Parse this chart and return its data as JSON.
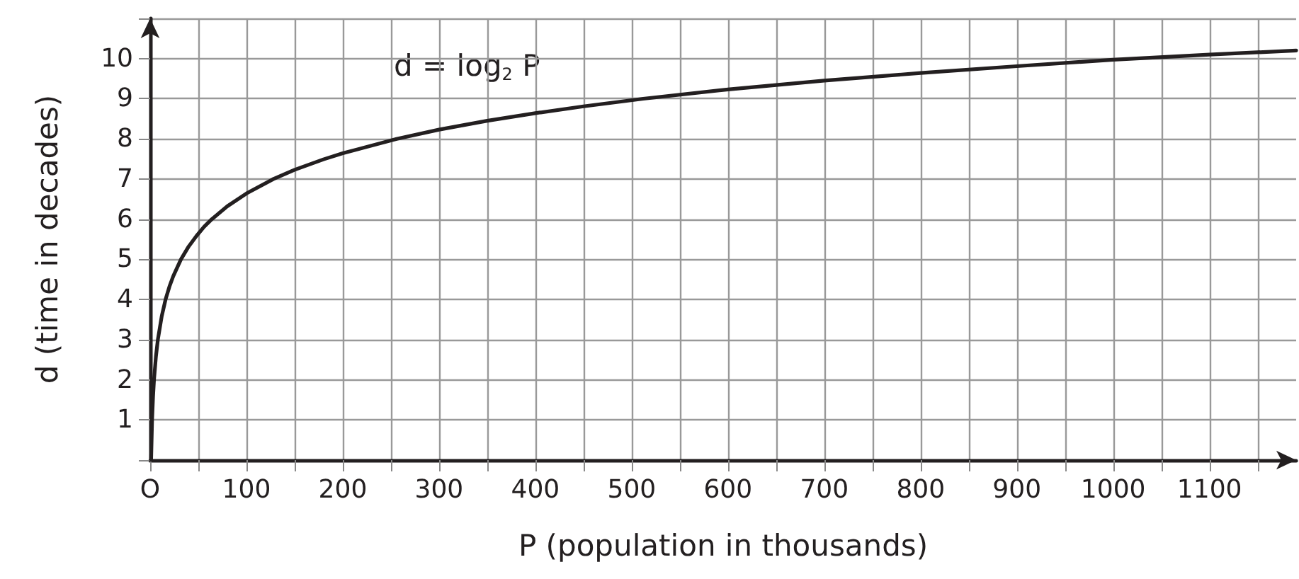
{
  "chart_data": {
    "type": "line",
    "xlabel": "P (population in thousands)",
    "ylabel": "d (time in decades)",
    "annotations": [
      "d = log$_{2}$ P"
    ],
    "x": [
      1,
      2,
      3,
      4,
      6,
      8,
      12,
      16,
      20,
      24,
      32,
      40,
      48,
      56,
      64,
      80,
      100,
      128,
      150,
      180,
      200,
      256,
      300,
      350,
      400,
      450,
      512,
      600,
      700,
      800,
      900,
      1000,
      1100,
      1190
    ],
    "series": [
      {
        "color": "#231f20",
        "values": [
          0,
          1,
          1.58,
          2,
          2.58,
          3,
          3.58,
          4,
          4.32,
          4.58,
          5,
          5.32,
          5.58,
          5.81,
          6,
          6.32,
          6.64,
          7,
          7.23,
          7.49,
          7.64,
          8,
          8.23,
          8.45,
          8.64,
          8.81,
          9,
          9.23,
          9.45,
          9.64,
          9.81,
          9.97,
          10.1,
          10.2
        ]
      }
    ],
    "xlim": [
      0,
      1190
    ],
    "ylim": [
      0,
      11
    ],
    "xticks": [
      {
        "value": 0,
        "label": "O"
      },
      {
        "value": 50,
        "label": null
      },
      100,
      {
        "value": 150,
        "label": null
      },
      200,
      {
        "value": 250,
        "label": null
      },
      300,
      {
        "value": 350,
        "label": null
      },
      400,
      {
        "value": 450,
        "label": null
      },
      500,
      {
        "value": 550,
        "label": null
      },
      600,
      {
        "value": 650,
        "label": null
      },
      700,
      {
        "value": 750,
        "label": null
      },
      800,
      {
        "value": 850,
        "label": null
      },
      900,
      {
        "value": 950,
        "label": null
      },
      1000,
      {
        "value": 1050,
        "label": null
      },
      1100,
      {
        "value": 1150,
        "label": null
      }
    ],
    "yticks": [
      {
        "value": 0,
        "label": null
      },
      1,
      2,
      3,
      4,
      5,
      6,
      7,
      8,
      9,
      10,
      {
        "value": 11,
        "label": null
      }
    ],
    "grid": true,
    "marker": "none",
    "line_style": "solid"
  }
}
